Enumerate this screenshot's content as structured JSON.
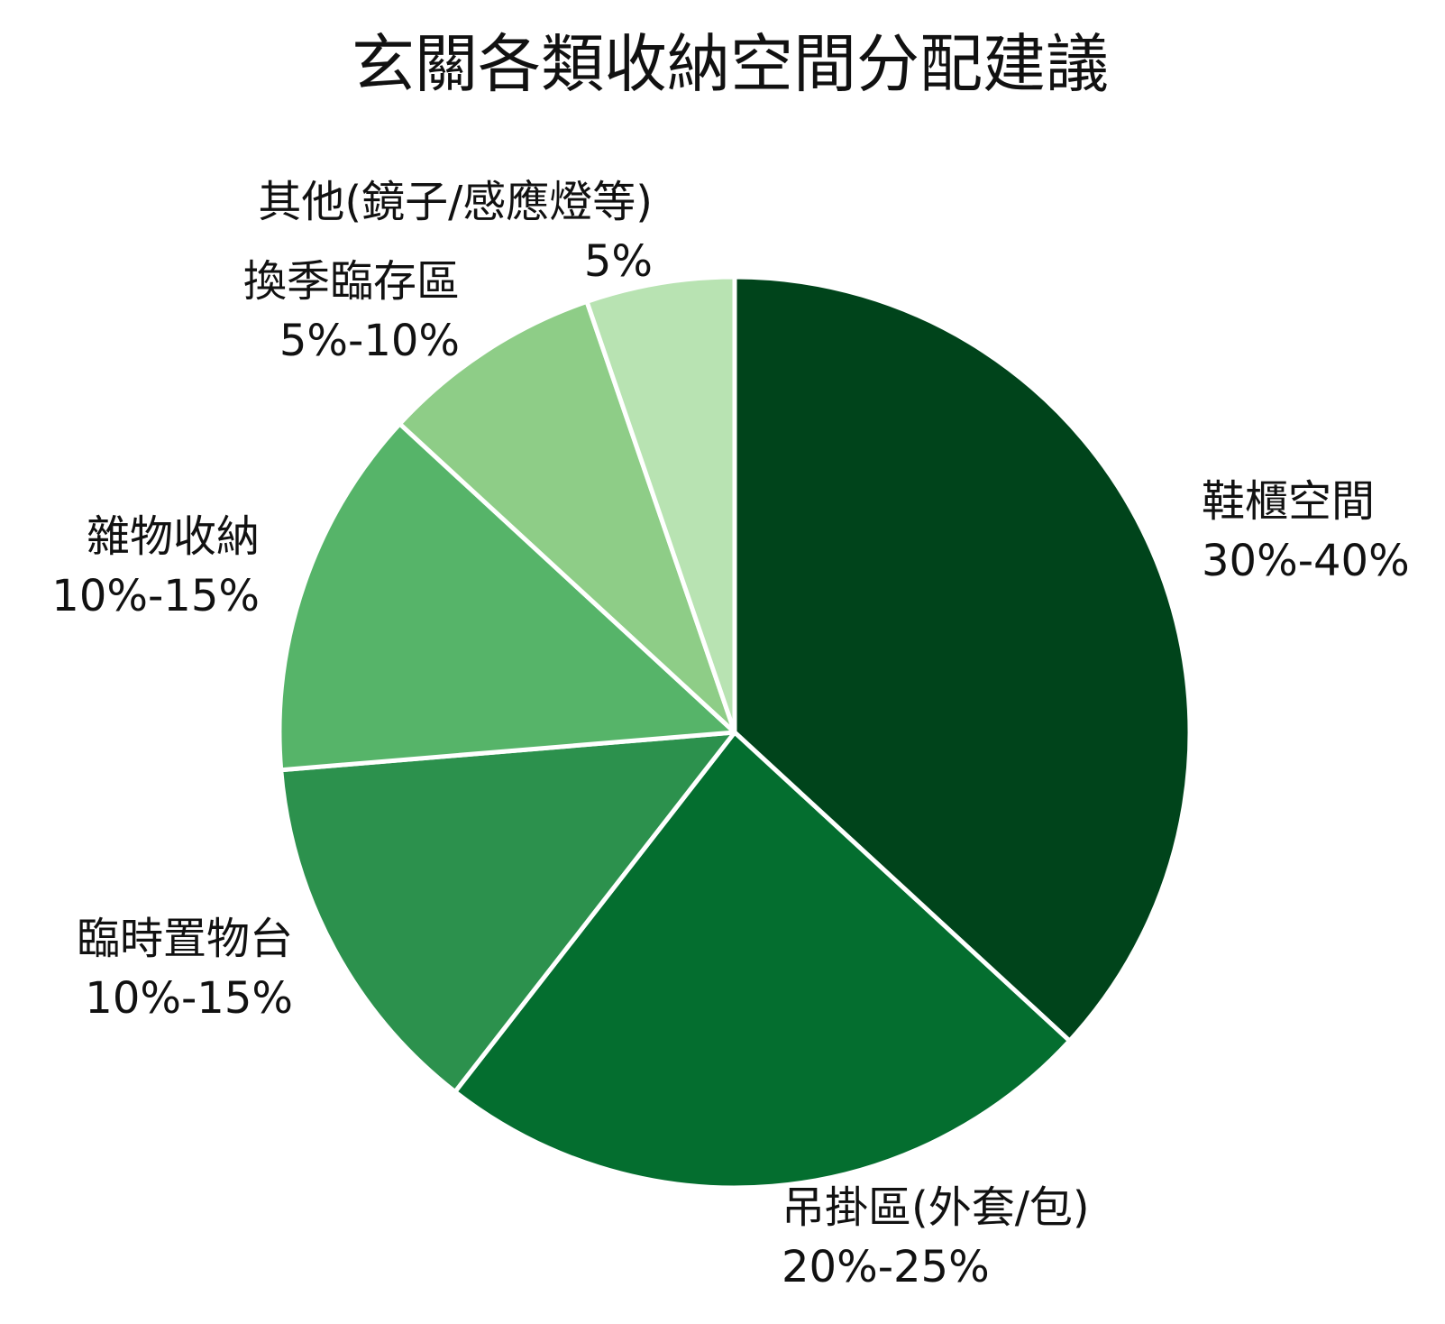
{
  "chart_data": {
    "type": "pie",
    "title": "玄關各類收納空間分配建議",
    "slices": [
      {
        "label": "鞋櫃空間",
        "value_text": "30%-40%",
        "value": 35,
        "color": "#00441b"
      },
      {
        "label": "吊掛區(外套/包)",
        "value_text": "20%-25%",
        "value": 22.5,
        "color": "#046e2f"
      },
      {
        "label": "臨時置物台",
        "value_text": "10%-15%",
        "value": 12.5,
        "color": "#2c914d"
      },
      {
        "label": "雜物收納",
        "value_text": "10%-15%",
        "value": 12.5,
        "color": "#56b469"
      },
      {
        "label": "換季臨存區",
        "value_text": "5%-10%",
        "value": 7.5,
        "color": "#8ecd87"
      },
      {
        "label": "其他(鏡子/感應燈等)",
        "value_text": "5%",
        "value": 5,
        "color": "#b8e3b2"
      }
    ]
  }
}
